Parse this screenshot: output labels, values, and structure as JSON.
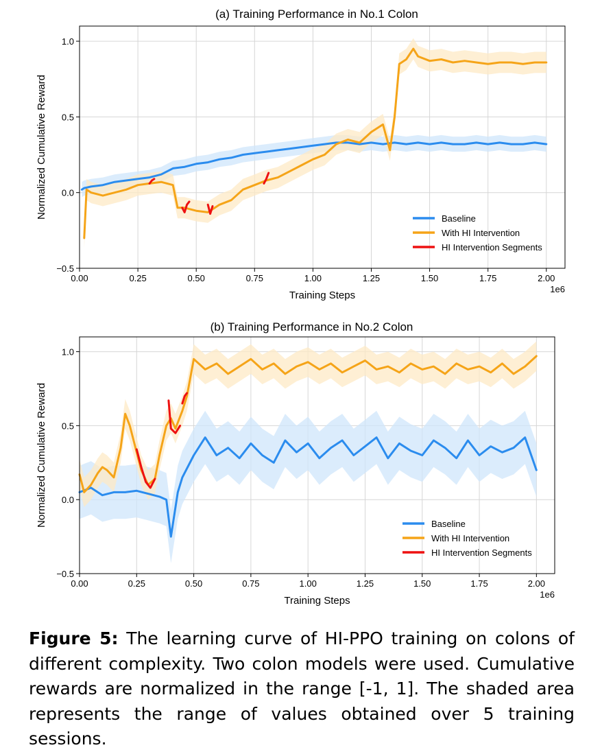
{
  "chart_data": [
    {
      "type": "line",
      "panel": "(a)",
      "title": "Training Performance in No.1 Colon",
      "xlabel": "Training Steps",
      "ylabel": "Normalized Cumulative Reward",
      "x_multiplier": "1e6",
      "xlim": [
        0,
        2.08
      ],
      "ylim": [
        -0.5,
        1.1
      ],
      "xticks": [
        "0.00",
        "0.25",
        "0.50",
        "0.75",
        "1.00",
        "1.25",
        "1.50",
        "1.75",
        "2.00"
      ],
      "yticks": [
        "−0.5",
        "0.0",
        "0.5",
        "1.0"
      ],
      "grid": true,
      "legend_position": "lower right",
      "legend": [
        "Baseline",
        "With HI Intervention",
        "HI Intervention Segments"
      ],
      "colors": {
        "baseline": "#2b8cee",
        "hi": "#f5a418",
        "segment": "#ee1111",
        "baseline_band": "#cfe6fb",
        "hi_band": "#fde9c6"
      },
      "series": [
        {
          "name": "Baseline",
          "band": 0.05,
          "x": [
            0.01,
            0.02,
            0.05,
            0.1,
            0.15,
            0.2,
            0.25,
            0.3,
            0.35,
            0.4,
            0.45,
            0.5,
            0.55,
            0.6,
            0.65,
            0.7,
            0.75,
            0.8,
            0.85,
            0.9,
            0.95,
            1.0,
            1.05,
            1.1,
            1.15,
            1.2,
            1.25,
            1.3,
            1.35,
            1.4,
            1.45,
            1.5,
            1.55,
            1.6,
            1.65,
            1.7,
            1.75,
            1.8,
            1.85,
            1.9,
            1.95,
            2.0
          ],
          "y": [
            0.02,
            0.03,
            0.04,
            0.05,
            0.07,
            0.08,
            0.09,
            0.1,
            0.12,
            0.16,
            0.17,
            0.19,
            0.2,
            0.22,
            0.23,
            0.25,
            0.26,
            0.27,
            0.28,
            0.29,
            0.3,
            0.31,
            0.32,
            0.33,
            0.33,
            0.32,
            0.33,
            0.32,
            0.33,
            0.32,
            0.33,
            0.32,
            0.33,
            0.32,
            0.32,
            0.33,
            0.32,
            0.33,
            0.32,
            0.32,
            0.33,
            0.32
          ]
        },
        {
          "name": "With HI Intervention",
          "band": 0.07,
          "x": [
            0.02,
            0.03,
            0.05,
            0.1,
            0.15,
            0.2,
            0.25,
            0.3,
            0.35,
            0.4,
            0.42,
            0.45,
            0.5,
            0.55,
            0.6,
            0.65,
            0.7,
            0.75,
            0.8,
            0.85,
            0.9,
            0.95,
            1.0,
            1.05,
            1.1,
            1.15,
            1.2,
            1.25,
            1.3,
            1.33,
            1.35,
            1.37,
            1.4,
            1.43,
            1.45,
            1.5,
            1.55,
            1.6,
            1.65,
            1.7,
            1.75,
            1.8,
            1.85,
            1.9,
            1.95,
            2.0
          ],
          "y": [
            -0.3,
            0.02,
            0.0,
            -0.02,
            0.0,
            0.02,
            0.05,
            0.06,
            0.07,
            0.05,
            -0.1,
            -0.1,
            -0.12,
            -0.13,
            -0.08,
            -0.05,
            0.02,
            0.05,
            0.08,
            0.1,
            0.14,
            0.18,
            0.22,
            0.25,
            0.32,
            0.35,
            0.33,
            0.4,
            0.45,
            0.28,
            0.5,
            0.85,
            0.88,
            0.95,
            0.9,
            0.87,
            0.88,
            0.86,
            0.87,
            0.86,
            0.85,
            0.86,
            0.86,
            0.85,
            0.86,
            0.86
          ]
        },
        {
          "name": "HI Intervention Segments",
          "segments": [
            {
              "x": [
                0.3,
                0.31,
                0.32
              ],
              "y": [
                0.06,
                0.08,
                0.09
              ]
            },
            {
              "x": [
                0.44,
                0.45,
                0.46,
                0.47
              ],
              "y": [
                -0.1,
                -0.13,
                -0.08,
                -0.06
              ]
            },
            {
              "x": [
                0.55,
                0.56,
                0.57
              ],
              "y": [
                -0.08,
                -0.14,
                -0.09
              ]
            },
            {
              "x": [
                0.79,
                0.8,
                0.81
              ],
              "y": [
                0.06,
                0.09,
                0.13
              ]
            }
          ]
        }
      ]
    },
    {
      "type": "line",
      "panel": "(b)",
      "title": "Training Performance in No.2 Colon",
      "xlabel": "Training Steps",
      "ylabel": "Normalized Cumulative Reward",
      "x_multiplier": "1e6",
      "xlim": [
        0,
        2.08
      ],
      "ylim": [
        -0.5,
        1.1
      ],
      "xticks": [
        "0.00",
        "0.25",
        "0.50",
        "0.75",
        "1.00",
        "1.25",
        "1.50",
        "1.75",
        "2.00"
      ],
      "yticks": [
        "−0.5",
        "0.0",
        "0.5",
        "1.0"
      ],
      "grid": true,
      "legend_position": "lower right",
      "legend": [
        "Baseline",
        "With HI Intervention",
        "HI Intervention Segments"
      ],
      "colors": {
        "baseline": "#2b8cee",
        "hi": "#f5a418",
        "segment": "#ee1111",
        "baseline_band": "#cfe6fb",
        "hi_band": "#fde9c6"
      },
      "series": [
        {
          "name": "Baseline",
          "band": 0.18,
          "x": [
            0.0,
            0.05,
            0.1,
            0.15,
            0.2,
            0.25,
            0.3,
            0.35,
            0.38,
            0.4,
            0.43,
            0.45,
            0.5,
            0.55,
            0.6,
            0.65,
            0.7,
            0.75,
            0.8,
            0.85,
            0.9,
            0.95,
            1.0,
            1.05,
            1.1,
            1.15,
            1.2,
            1.25,
            1.3,
            1.35,
            1.4,
            1.45,
            1.5,
            1.55,
            1.6,
            1.65,
            1.7,
            1.75,
            1.8,
            1.85,
            1.9,
            1.95,
            2.0
          ],
          "y": [
            0.05,
            0.08,
            0.03,
            0.05,
            0.05,
            0.06,
            0.04,
            0.02,
            0.0,
            -0.25,
            0.05,
            0.15,
            0.3,
            0.42,
            0.3,
            0.35,
            0.28,
            0.38,
            0.3,
            0.25,
            0.4,
            0.32,
            0.38,
            0.28,
            0.35,
            0.4,
            0.3,
            0.36,
            0.42,
            0.28,
            0.38,
            0.33,
            0.3,
            0.4,
            0.35,
            0.28,
            0.4,
            0.3,
            0.36,
            0.32,
            0.35,
            0.42,
            0.2
          ]
        },
        {
          "name": "With HI Intervention",
          "band": 0.1,
          "x": [
            0.0,
            0.02,
            0.05,
            0.08,
            0.1,
            0.12,
            0.15,
            0.18,
            0.2,
            0.22,
            0.25,
            0.27,
            0.3,
            0.33,
            0.35,
            0.38,
            0.4,
            0.42,
            0.45,
            0.47,
            0.5,
            0.55,
            0.6,
            0.65,
            0.7,
            0.75,
            0.8,
            0.85,
            0.9,
            0.95,
            1.0,
            1.05,
            1.1,
            1.15,
            1.2,
            1.25,
            1.3,
            1.35,
            1.4,
            1.45,
            1.5,
            1.55,
            1.6,
            1.65,
            1.7,
            1.75,
            1.8,
            1.85,
            1.9,
            1.95,
            2.0
          ],
          "y": [
            0.17,
            0.05,
            0.1,
            0.18,
            0.22,
            0.2,
            0.15,
            0.35,
            0.58,
            0.5,
            0.32,
            0.2,
            0.1,
            0.14,
            0.3,
            0.5,
            0.55,
            0.48,
            0.6,
            0.7,
            0.95,
            0.88,
            0.92,
            0.85,
            0.9,
            0.95,
            0.88,
            0.92,
            0.85,
            0.9,
            0.93,
            0.88,
            0.92,
            0.86,
            0.9,
            0.94,
            0.88,
            0.9,
            0.86,
            0.92,
            0.88,
            0.9,
            0.85,
            0.92,
            0.88,
            0.9,
            0.86,
            0.92,
            0.85,
            0.9,
            0.97
          ]
        },
        {
          "name": "HI Intervention Segments",
          "segments": [
            {
              "x": [
                0.25,
                0.27,
                0.29,
                0.31,
                0.33
              ],
              "y": [
                0.34,
                0.22,
                0.12,
                0.08,
                0.14
              ]
            },
            {
              "x": [
                0.39,
                0.4,
                0.42,
                0.44
              ],
              "y": [
                0.67,
                0.48,
                0.45,
                0.5
              ]
            },
            {
              "x": [
                0.45,
                0.46,
                0.47
              ],
              "y": [
                0.65,
                0.7,
                0.72
              ]
            }
          ]
        }
      ]
    }
  ],
  "caption": {
    "label": "Figure 5:",
    "text": " The learning curve of HI-PPO training on colons of different complexity. Two colon models were used. Cumulative rewards are normalized in the range [-1, 1]. The shaded area represents the range of values obtained over 5 training sessions."
  }
}
